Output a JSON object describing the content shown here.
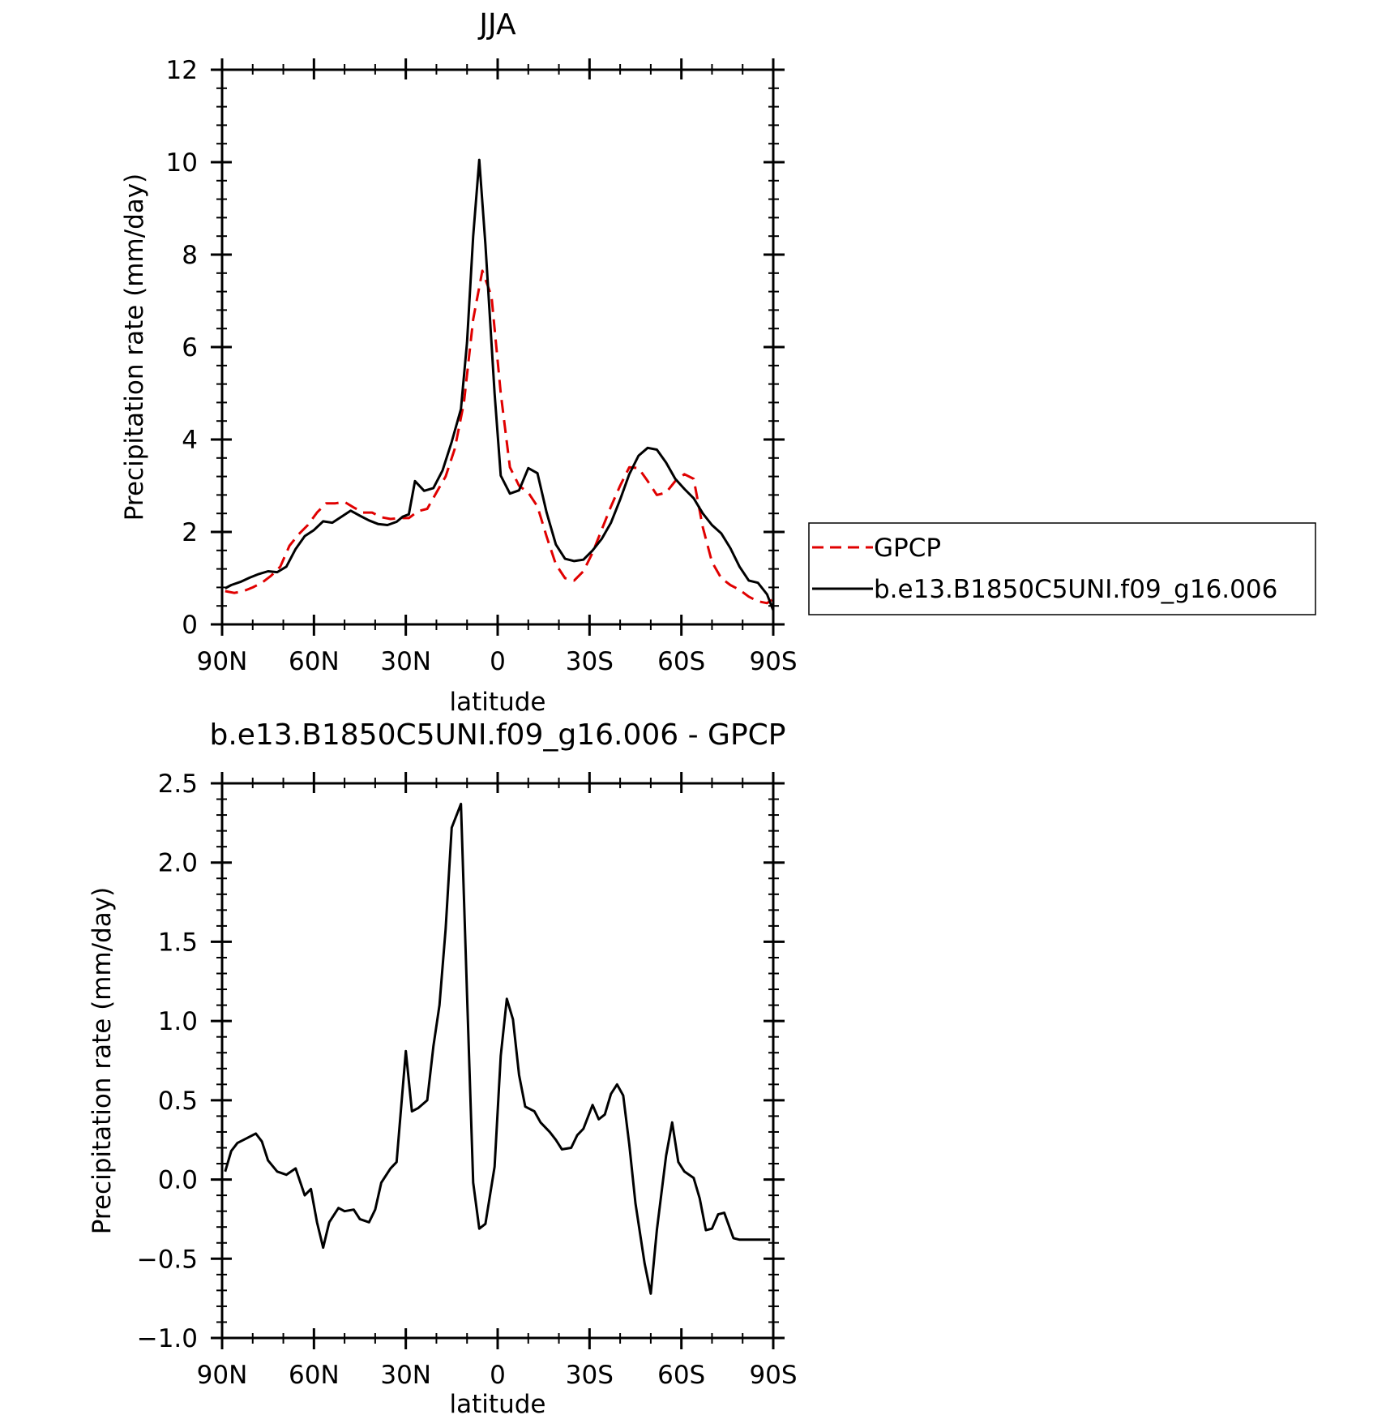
{
  "chart_data": [
    {
      "type": "line",
      "title": "JJA",
      "xlabel": "latitude",
      "ylabel": "Precipitation rate (mm/day)",
      "xlim": [
        -90,
        90
      ],
      "ylim": [
        0,
        12
      ],
      "xticks": [
        -90,
        -60,
        -30,
        0,
        30,
        60,
        90
      ],
      "xtick_labels": [
        "90N",
        "60N",
        "30N",
        "0",
        "30S",
        "60S",
        "90S"
      ],
      "yticks": [
        0,
        2,
        4,
        6,
        8,
        10,
        12
      ],
      "ytick_labels": [
        "0",
        "2",
        "4",
        "6",
        "8",
        "10",
        "12"
      ],
      "legend_position": "right-outside",
      "series": [
        {
          "name": "GPCP",
          "color": "#e00000",
          "dash": true,
          "x": [
            -89,
            -86,
            -83,
            -80,
            -77,
            -74,
            -71,
            -68,
            -65,
            -62,
            -59,
            -56,
            -53,
            -50,
            -47,
            -44,
            -41,
            -38,
            -35,
            -32,
            -29,
            -26,
            -23,
            -20,
            -17,
            -14,
            -11,
            -8,
            -5,
            -2,
            1,
            4,
            7,
            10,
            13,
            16,
            19,
            22,
            25,
            28,
            31,
            34,
            37,
            40,
            43,
            46,
            49,
            52,
            55,
            58,
            61,
            64,
            67,
            70,
            73,
            76,
            79,
            82,
            85,
            88,
            90
          ],
          "y": [
            0.72,
            0.68,
            0.72,
            0.8,
            0.9,
            1.05,
            1.25,
            1.7,
            1.95,
            2.15,
            2.42,
            2.62,
            2.62,
            2.65,
            2.53,
            2.42,
            2.42,
            2.32,
            2.28,
            2.3,
            2.3,
            2.45,
            2.5,
            2.85,
            3.2,
            3.8,
            4.8,
            6.6,
            7.65,
            7.1,
            5.0,
            3.4,
            3.0,
            2.85,
            2.55,
            1.9,
            1.3,
            1.0,
            0.95,
            1.15,
            1.55,
            2.05,
            2.55,
            3.0,
            3.4,
            3.38,
            3.1,
            2.8,
            2.85,
            3.1,
            3.25,
            3.15,
            2.1,
            1.35,
            1.0,
            0.85,
            0.75,
            0.6,
            0.5,
            0.46,
            0.55
          ]
        },
        {
          "name": "b.e13.B1850C5UNI.f09_g16.006",
          "color": "#000000",
          "dash": false,
          "x": [
            -89,
            -87,
            -84,
            -81,
            -78,
            -75,
            -72,
            -69,
            -66,
            -63,
            -60,
            -57,
            -54,
            -51,
            -48,
            -45,
            -42,
            -39,
            -36,
            -33,
            -31,
            -29,
            -27,
            -24,
            -21,
            -18,
            -15,
            -12,
            -10,
            -8,
            -6,
            -4,
            -1,
            1,
            4,
            7,
            10,
            13,
            16,
            19,
            22,
            25,
            28,
            31,
            34,
            37,
            40,
            43,
            46,
            49,
            52,
            55,
            58,
            61,
            64,
            67,
            70,
            73,
            76,
            79,
            82,
            85,
            88,
            90
          ],
          "y": [
            0.78,
            0.85,
            0.92,
            1.01,
            1.09,
            1.15,
            1.13,
            1.25,
            1.63,
            1.91,
            2.04,
            2.23,
            2.2,
            2.33,
            2.46,
            2.35,
            2.25,
            2.17,
            2.15,
            2.22,
            2.33,
            2.38,
            3.1,
            2.89,
            2.95,
            3.33,
            3.95,
            4.66,
            6.1,
            8.4,
            10.05,
            8.22,
            5.0,
            3.22,
            2.83,
            2.9,
            3.38,
            3.27,
            2.42,
            1.73,
            1.42,
            1.37,
            1.4,
            1.6,
            1.85,
            2.2,
            2.7,
            3.25,
            3.65,
            3.82,
            3.78,
            3.5,
            3.15,
            2.93,
            2.73,
            2.4,
            2.15,
            1.97,
            1.65,
            1.25,
            0.95,
            0.9,
            0.65,
            0.3
          ]
        }
      ]
    },
    {
      "type": "line",
      "title": "b.e13.B1850C5UNI.f09_g16.006 - GPCP",
      "xlabel": "latitude",
      "ylabel": "Precipitation rate (mm/day)",
      "xlim": [
        -90,
        90
      ],
      "ylim": [
        -1.0,
        2.5
      ],
      "xticks": [
        -90,
        -60,
        -30,
        0,
        30,
        60,
        90
      ],
      "xtick_labels": [
        "90N",
        "60N",
        "30N",
        "0",
        "30S",
        "60S",
        "90S"
      ],
      "yticks": [
        -1.0,
        -0.5,
        0.0,
        0.5,
        1.0,
        1.5,
        2.0,
        2.5
      ],
      "ytick_labels": [
        "−1.0",
        "−0.5",
        "0.0",
        "0.5",
        "1.0",
        "1.5",
        "2.0",
        "2.5"
      ],
      "series": [
        {
          "color": "#000000",
          "x": [
            -89,
            -87,
            -85,
            -82,
            -79,
            -77,
            -75,
            -72,
            -69,
            -66,
            -63,
            -61,
            -59,
            -57,
            -55,
            -52,
            -50,
            -47,
            -45,
            -42,
            -40,
            -38,
            -35,
            -33,
            -30,
            -28,
            -26,
            -23,
            -21,
            -19,
            -17,
            -15,
            -12,
            -10,
            -8,
            -6,
            -4,
            -1,
            1,
            3,
            5,
            7,
            9,
            12,
            14,
            17,
            19,
            21,
            24,
            26,
            28,
            31,
            33,
            35,
            37,
            39,
            41,
            43,
            45,
            48,
            50,
            52,
            55,
            57,
            59,
            61,
            64,
            66,
            68,
            70,
            72,
            74,
            77,
            79,
            82,
            84,
            86,
            89
          ],
          "y": [
            0.05,
            0.18,
            0.23,
            0.26,
            0.29,
            0.24,
            0.12,
            0.05,
            0.03,
            0.07,
            -0.1,
            -0.06,
            -0.27,
            -0.43,
            -0.27,
            -0.18,
            -0.2,
            -0.19,
            -0.25,
            -0.27,
            -0.19,
            -0.02,
            0.07,
            0.11,
            0.81,
            0.43,
            0.45,
            0.5,
            0.84,
            1.1,
            1.58,
            2.22,
            2.37,
            1.17,
            -0.02,
            -0.31,
            -0.28,
            0.08,
            0.78,
            1.14,
            1.01,
            0.66,
            0.46,
            0.43,
            0.36,
            0.3,
            0.25,
            0.19,
            0.2,
            0.28,
            0.32,
            0.47,
            0.38,
            0.41,
            0.54,
            0.6,
            0.53,
            0.22,
            -0.15,
            -0.53,
            -0.72,
            -0.32,
            0.15,
            0.36,
            0.11,
            0.05,
            0.01,
            -0.12,
            -0.32,
            -0.31,
            -0.22,
            -0.21,
            -0.37,
            -0.38,
            -0.38,
            -0.38,
            -0.38,
            -0.38
          ]
        }
      ]
    }
  ],
  "legend": {
    "items": [
      {
        "label": "GPCP"
      },
      {
        "label": "b.e13.B1850C5UNI.f09_g16.006"
      }
    ]
  }
}
